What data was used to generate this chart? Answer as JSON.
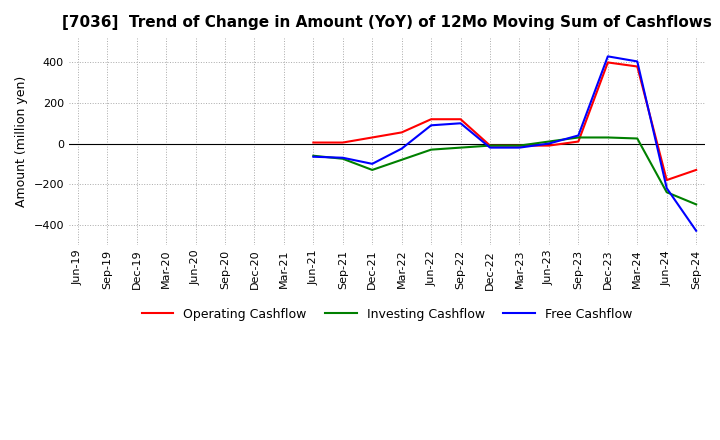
{
  "title": "[7036]  Trend of Change in Amount (YoY) of 12Mo Moving Sum of Cashflows",
  "ylabel": "Amount (million yen)",
  "ylim": [
    -500,
    520
  ],
  "yticks": [
    -400,
    -200,
    0,
    200,
    400
  ],
  "x_labels": [
    "Jun-19",
    "Sep-19",
    "Dec-19",
    "Mar-20",
    "Jun-20",
    "Sep-20",
    "Dec-20",
    "Mar-21",
    "Jun-21",
    "Sep-21",
    "Dec-21",
    "Mar-22",
    "Jun-22",
    "Sep-22",
    "Dec-22",
    "Mar-23",
    "Jun-23",
    "Sep-23",
    "Dec-23",
    "Mar-24",
    "Jun-24",
    "Sep-24"
  ],
  "operating": [
    null,
    null,
    null,
    null,
    null,
    null,
    null,
    null,
    5,
    5,
    30,
    55,
    120,
    120,
    -10,
    -10,
    -10,
    10,
    400,
    380,
    -180,
    -130
  ],
  "investing": [
    null,
    null,
    null,
    null,
    null,
    null,
    null,
    null,
    -60,
    -75,
    -130,
    -80,
    -30,
    -20,
    -10,
    -10,
    10,
    30,
    30,
    25,
    -240,
    -300
  ],
  "free": [
    null,
    null,
    null,
    null,
    null,
    null,
    null,
    null,
    -65,
    -70,
    -100,
    -25,
    90,
    100,
    -20,
    -20,
    0,
    40,
    430,
    405,
    -220,
    -430
  ],
  "operating_color": "#ff0000",
  "investing_color": "#008000",
  "free_color": "#0000ff",
  "background_color": "#ffffff",
  "grid_color": "#aaaaaa",
  "title_fontsize": 11,
  "label_fontsize": 9,
  "tick_fontsize": 8,
  "legend_fontsize": 9
}
